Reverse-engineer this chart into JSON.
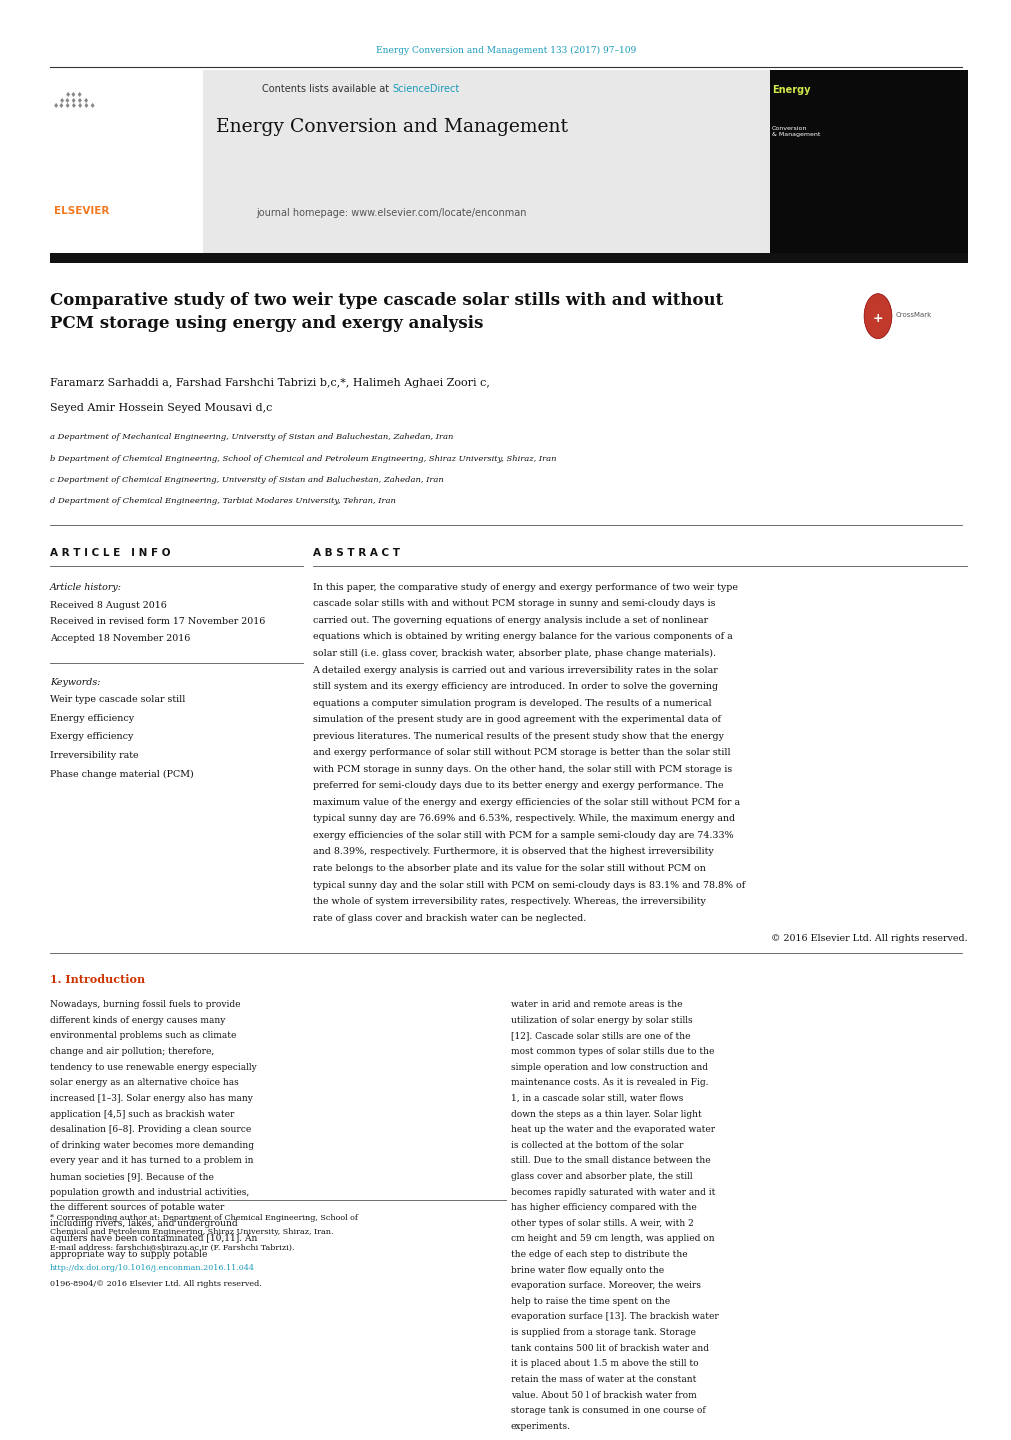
{
  "page_width": 9.92,
  "page_height": 13.23,
  "bg_color": "#ffffff",
  "journal_ref": "Energy Conversion and Management 133 (2017) 97–109",
  "journal_ref_color": "#1a9bba",
  "contents_text": "Contents lists available at ",
  "sciencedirect_text": "ScienceDirect",
  "sciencedirect_color": "#1a9bba",
  "journal_name": "Energy Conversion and Management",
  "journal_homepage": "journal homepage: www.elsevier.com/locate/enconman",
  "elsevier_color": "#f47920",
  "header_bg": "#e8e8e8",
  "title_text": "Comparative study of two weir type cascade solar stills with and without\nPCM storage using energy and exergy analysis",
  "author_line1": "Faramarz Sarhaddi a, Farshad Farshchi Tabrizi b,c,*, Halimeh Aghaei Zoori c,",
  "author_line2": "Seyed Amir Hossein Seyed Mousavi d,c",
  "affil_a": "a Department of Mechanical Engineering, University of Sistan and Baluchestan, Zahedan, Iran",
  "affil_b": "b Department of Chemical Engineering, School of Chemical and Petroleum Engineering, Shiraz University, Shiraz, Iran",
  "affil_c": "c Department of Chemical Engineering, University of Sistan and Baluchestan, Zahedan, Iran",
  "affil_d": "d Department of Chemical Engineering, Tarbiat Modares University, Tehran, Iran",
  "article_info_title": "A R T I C L E   I N F O",
  "abstract_title": "A B S T R A C T",
  "article_history_label": "Article history:",
  "received": "Received 8 August 2016",
  "received_revised": "Received in revised form 17 November 2016",
  "accepted": "Accepted 18 November 2016",
  "keywords_label": "Keywords:",
  "keywords": [
    "Weir type cascade solar still",
    "Energy efficiency",
    "Exergy efficiency",
    "Irreversibility rate",
    "Phase change material (PCM)"
  ],
  "abstract_text": "In this paper, the comparative study of energy and exergy performance of two weir type cascade solar stills with and without PCM storage in sunny and semi-cloudy days is carried out. The governing equations of energy analysis include a set of nonlinear equations which is obtained by writing energy balance for the various components of a solar still (i.e. glass cover, brackish water, absorber plate, phase change materials). A detailed exergy analysis is carried out and various irreversibility rates in the solar still system and its exergy efficiency are introduced. In order to solve the governing equations a computer simulation program is developed. The results of a numerical simulation of the present study are in good agreement with the experimental data of previous literatures. The numerical results of the present study show that the energy and exergy performance of solar still without PCM storage is better than the solar still with PCM storage in sunny days. On the other hand, the solar still with PCM storage is preferred for semi-cloudy days due to its better energy and exergy performance. The maximum value of the energy and exergy efficiencies of the solar still without PCM for a typical sunny day are 76.69% and 6.53%, respectively. While, the maximum energy and exergy efficiencies of the solar still with PCM for a sample semi-cloudy day are 74.33% and 8.39%, respectively. Furthermore, it is observed that the highest irreversibility rate belongs to the absorber plate and its value for the solar still without PCM on typical sunny day and the solar still with PCM on semi-cloudy days is 83.1% and 78.8% of the whole of system irreversibility rates, respectively. Whereas, the irreversibility rate of glass cover and brackish water can be neglected.",
  "copyright_text": "© 2016 Elsevier Ltd. All rights reserved.",
  "intro_title": "1. Introduction",
  "intro_col1": "Nowadays, burning fossil fuels to provide different kinds of energy causes many environmental problems such as climate change and air pollution; therefore, tendency to use renewable energy especially solar energy as an alternative choice has increased [1–3]. Solar energy also has many application [4,5] such as brackish water desalination [6–8]. Providing a clean source of drinking water becomes more demanding every year and it has turned to a problem in human societies [9]. Because of the population growth and industrial activities, the different sources of potable water including rivers, lakes, and underground aquifers have been contaminated [10,11]. An appropriate way to supply potable",
  "intro_col2": "water in arid and remote areas is the utilization of solar energy by solar stills [12]. Cascade solar stills are one of the most common types of solar stills due to the simple operation and low construction and maintenance costs. As it is revealed in Fig. 1, in a cascade solar still, water flows down the steps as a thin layer. Solar light heat up the water and the evaporated water is collected at the bottom of the solar still. Due to the small distance between the glass cover and absorber plate, the still becomes rapidly saturated with water and it has higher efficiency compared with the other types of solar stills. A weir, with 2 cm height and 59 cm length, was applied on the edge of each step to distribute the brine water flow equally onto the evaporation surface. Moreover, the weirs help to raise the time spent on the evaporation surface [13]. The brackish water is supplied from a storage tank. Storage tank contains 500 lit of brackish water and it is placed about 1.5 m above the still to retain the mass of water at the constant value. About 50 l of brackish water from storage tank is consumed in one course of experiments.",
  "footnote_text": "* Corresponding author at: Department of Chemical Engineering, School of\nChemical and Petroleum Engineering, Shiraz University, Shiraz, Iran.\nE-mail address: farshchi@shirazu.ac.ir (F. Farshchi Tabrizi).",
  "doi_text": "http://dx.doi.org/10.1016/j.enconman.2016.11.044",
  "issn_text": "0196-8904/© 2016 Elsevier Ltd. All rights reserved."
}
